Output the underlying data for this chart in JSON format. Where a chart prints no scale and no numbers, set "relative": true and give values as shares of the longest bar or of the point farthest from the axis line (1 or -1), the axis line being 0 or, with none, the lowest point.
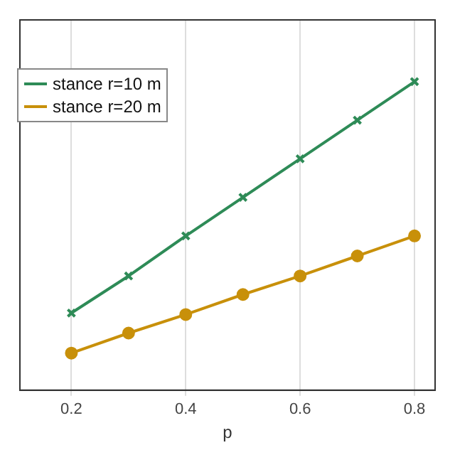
{
  "chart_data": {
    "type": "line",
    "xlabel": "p",
    "relative": true,
    "x": [
      0.2,
      0.3,
      0.4,
      0.5,
      0.6,
      0.7,
      0.8
    ],
    "xlim": [
      0.11,
      0.836
    ],
    "xticks": [
      {
        "value": 0.2,
        "label": "0.2"
      },
      {
        "value": 0.4,
        "label": "0.4"
      },
      {
        "value": 0.6,
        "label": "0.6"
      },
      {
        "value": 0.8,
        "label": "0.8"
      }
    ],
    "grid": "x",
    "legend": "top left",
    "line_style": "solid",
    "series": [
      {
        "name": "stance r=10 m",
        "color": "#2e8b57",
        "marker": "cross",
        "values": [
          0.25,
          0.37,
          0.5,
          0.625,
          0.75,
          0.875,
          1
        ]
      },
      {
        "name": "stance r=20 m",
        "color": "#c8900a",
        "marker": "circle",
        "values": [
          0.12,
          0.185,
          0.245,
          0.31,
          0.37,
          0.435,
          0.5
        ]
      }
    ]
  }
}
